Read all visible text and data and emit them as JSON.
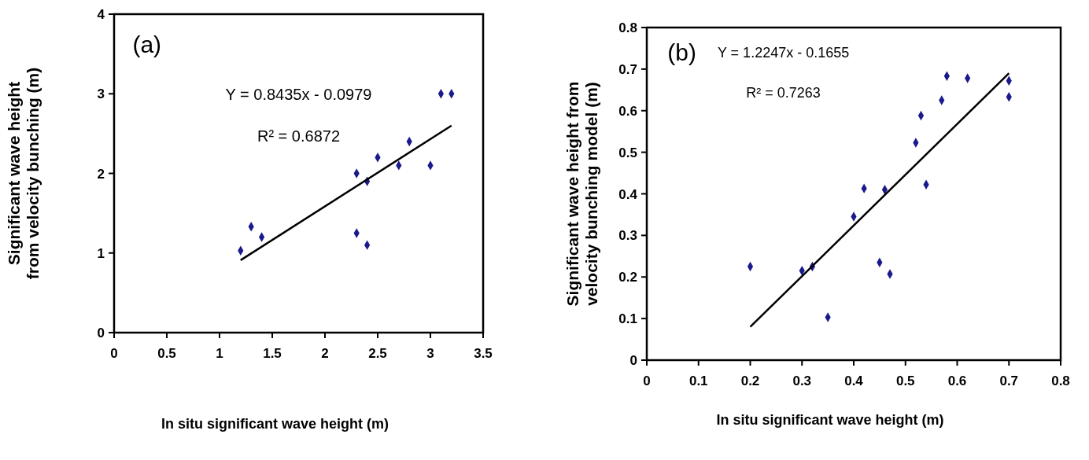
{
  "chart_data": [
    {
      "type": "scatter",
      "xlabel": "In situ significant wave height (m)",
      "ylabel": "Significant wave height from velocity bunching (m)",
      "xlim": [
        0,
        3.5
      ],
      "ylim": [
        0,
        4
      ],
      "xticks": [
        0,
        0.5,
        1,
        1.5,
        2,
        2.5,
        3,
        3.5
      ],
      "yticks": [
        0,
        1,
        2,
        3,
        4
      ],
      "grid": false,
      "annotations": [
        "(a)",
        "Y = 0.8435x - 0.0979",
        "R² = 0.6872"
      ],
      "series": [
        {
          "color": "#1a1a8c",
          "marker": "diamond",
          "x": [
            1.2,
            1.3,
            1.4,
            2.3,
            2.3,
            2.4,
            2.4,
            2.5,
            2.7,
            2.8,
            3.0,
            3.1,
            3.2
          ],
          "values": [
            1.03,
            1.33,
            1.2,
            2.0,
            1.25,
            1.9,
            1.1,
            2.2,
            2.1,
            2.4,
            2.1,
            3.0,
            3.0
          ]
        },
        {
          "type": "line",
          "color": "#000000",
          "marker": "none",
          "x": [
            1.2,
            3.2
          ],
          "values": [
            0.91,
            2.6
          ]
        }
      ]
    },
    {
      "type": "scatter",
      "xlabel": "In situ significant wave height (m)",
      "ylabel": "Significant wave height from velocity bunching model (m)",
      "xlim": [
        0,
        0.8
      ],
      "ylim": [
        0,
        0.8
      ],
      "xticks": [
        0,
        0.1,
        0.2,
        0.3,
        0.4,
        0.5,
        0.6,
        0.7,
        0.8
      ],
      "yticks": [
        0,
        0.1,
        0.2,
        0.3,
        0.4,
        0.5,
        0.6,
        0.7,
        0.8
      ],
      "grid": false,
      "annotations": [
        "(b)",
        "Y = 1.2247x - 0.1655",
        "R² = 0.7263"
      ],
      "series": [
        {
          "color": "#1a1a8c",
          "marker": "diamond",
          "x": [
            0.2,
            0.3,
            0.32,
            0.35,
            0.4,
            0.42,
            0.45,
            0.46,
            0.47,
            0.52,
            0.53,
            0.54,
            0.57,
            0.58,
            0.62,
            0.7,
            0.7
          ],
          "values": [
            0.225,
            0.215,
            0.225,
            0.103,
            0.345,
            0.413,
            0.235,
            0.41,
            0.207,
            0.523,
            0.588,
            0.422,
            0.625,
            0.683,
            0.678,
            0.672,
            0.633
          ]
        },
        {
          "type": "line",
          "color": "#000000",
          "marker": "none",
          "x": [
            0.2,
            0.7
          ],
          "values": [
            0.08,
            0.69
          ]
        }
      ]
    }
  ]
}
